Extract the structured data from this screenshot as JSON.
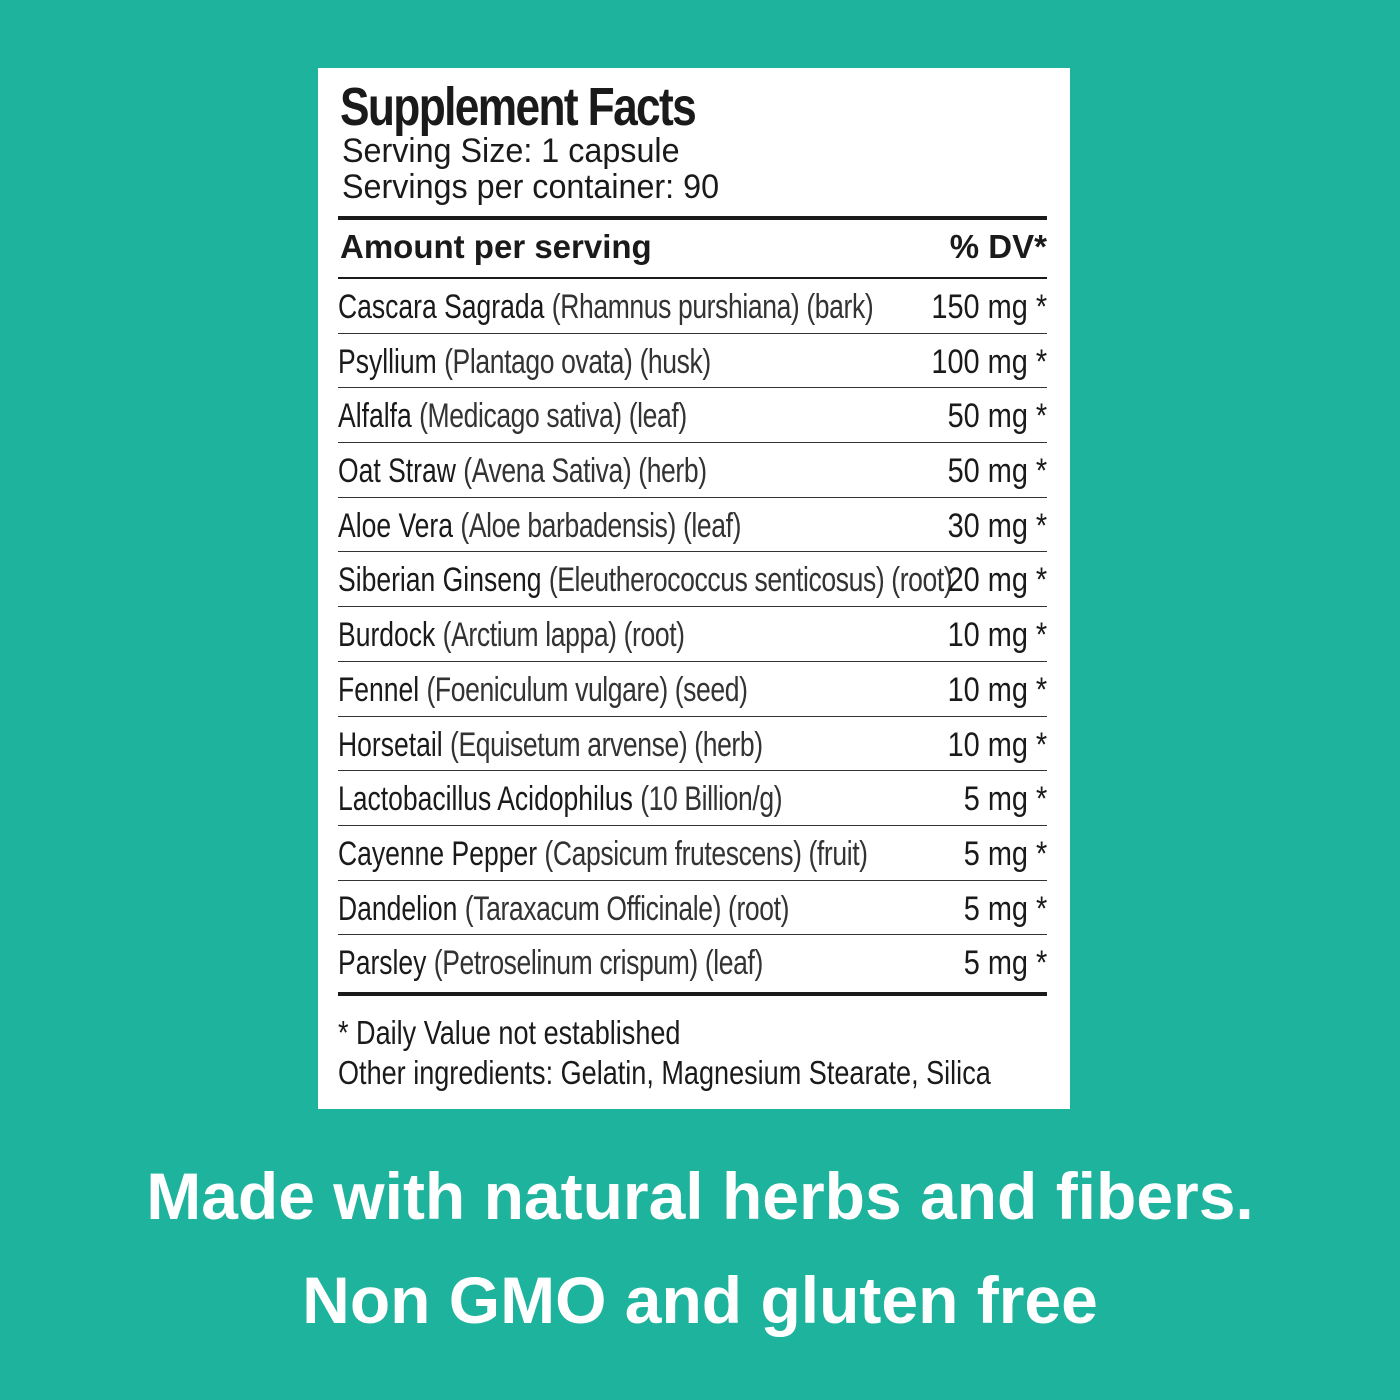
{
  "label": {
    "title": "Supplement Facts",
    "serving_size": "Serving Size: 1 capsule",
    "servings_per_container": "Servings per container: 90",
    "header_left": "Amount per serving",
    "header_right": "% DV*",
    "ingredients": [
      {
        "name": "Cascara Sagrada",
        "detail": "(Rhamnus purshiana) (bark)",
        "amount": "150 mg *"
      },
      {
        "name": "Psyllium",
        "detail": "(Plantago ovata) (husk)",
        "amount": "100 mg *"
      },
      {
        "name": "Alfalfa",
        "detail": "(Medicago sativa) (leaf)",
        "amount": "50 mg *"
      },
      {
        "name": "Oat Straw",
        "detail": "(Avena Sativa) (herb)",
        "amount": "50 mg *"
      },
      {
        "name": "Aloe Vera",
        "detail": "(Aloe barbadensis) (leaf)",
        "amount": "30 mg *"
      },
      {
        "name": "Siberian Ginseng",
        "detail": "(Eleutherococcus senticosus) (root)",
        "amount": "20 mg *"
      },
      {
        "name": "Burdock",
        "detail": "(Arctium lappa) (root)",
        "amount": "10 mg *"
      },
      {
        "name": "Fennel",
        "detail": "(Foeniculum vulgare) (seed)",
        "amount": "10 mg *"
      },
      {
        "name": "Horsetail",
        "detail": "(Equisetum arvense) (herb)",
        "amount": "10 mg *"
      },
      {
        "name": "Lactobacillus Acidophilus",
        "detail": "(10 Billion/g)",
        "amount": "5 mg *"
      },
      {
        "name": "Cayenne Pepper",
        "detail": "(Capsicum frutescens) (fruit)",
        "amount": "5 mg *"
      },
      {
        "name": "Dandelion",
        "detail": "(Taraxacum Officinale) (root)",
        "amount": "5 mg *"
      },
      {
        "name": "Parsley",
        "detail": "(Petroselinum crispum) (leaf)",
        "amount": "5 mg *"
      }
    ],
    "footnote": "* Daily Value not established",
    "other_ingredients": "Other ingredients: Gelatin, Magnesium Stearate, Silica"
  },
  "tagline": {
    "line1": "Made with natural herbs and fibers.",
    "line2": "Non GMO and gluten free"
  },
  "colors": {
    "background": "#1db39c",
    "label": "#ffffff",
    "text": "#1a1a1a"
  }
}
